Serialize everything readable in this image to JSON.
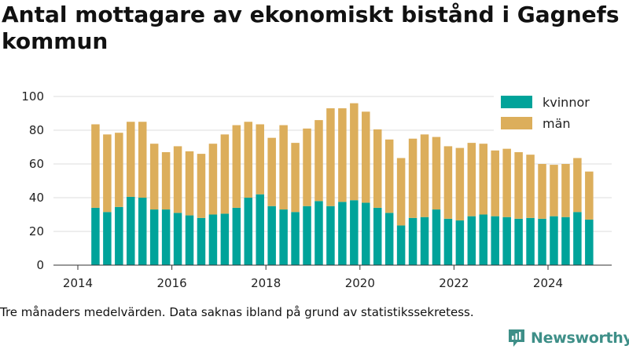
{
  "chart_data": {
    "type": "bar",
    "stacked": true,
    "title": "Antal mottagare av ekonomiskt bistånd i Gagnefs kommun",
    "xlabel": "",
    "ylabel": "",
    "ylim": [
      0,
      100
    ],
    "yticks": [
      0,
      20,
      40,
      60,
      80,
      100
    ],
    "xticks": [
      "2014",
      "2016",
      "2018",
      "2020",
      "2022",
      "2024"
    ],
    "x_start_year": 2014,
    "x_end_year": 2025.4,
    "legend_position": "top-right",
    "grid": "horizontal",
    "x": [
      "2014-05",
      "2014-08",
      "2014-11",
      "2015-02",
      "2015-05",
      "2015-08",
      "2015-11",
      "2016-02",
      "2016-05",
      "2016-08",
      "2016-11",
      "2017-02",
      "2017-05",
      "2017-08",
      "2017-11",
      "2018-02",
      "2018-05",
      "2018-08",
      "2018-11",
      "2019-02",
      "2019-05",
      "2019-08",
      "2019-11",
      "2020-02",
      "2020-05",
      "2020-08",
      "2020-11",
      "2021-02",
      "2021-05",
      "2021-08",
      "2021-11",
      "2022-02",
      "2022-05",
      "2022-08",
      "2022-11",
      "2023-02",
      "2023-05",
      "2023-08",
      "2023-11",
      "2024-02",
      "2024-05",
      "2024-08",
      "2024-11"
    ],
    "series": [
      {
        "name": "kvinnor",
        "color": "#00a39a",
        "values": [
          34,
          31.5,
          34.5,
          40.5,
          40,
          33,
          33,
          31,
          29.5,
          28,
          30,
          30.5,
          34,
          40,
          42,
          35,
          33,
          31.5,
          35,
          38,
          35,
          37.5,
          38.5,
          37,
          34,
          31,
          23.5,
          28,
          28.5,
          33,
          27.5,
          26.5,
          29,
          30,
          29,
          28.5,
          27.5,
          28,
          27.5,
          29,
          28.5,
          31.5,
          27
        ]
      },
      {
        "name": "män",
        "color": "#dcae5b",
        "values": [
          49.5,
          46,
          44,
          44.5,
          45,
          39,
          34,
          39.5,
          38,
          38,
          42,
          47,
          49,
          45,
          41.5,
          40.5,
          50,
          41,
          46,
          48,
          58,
          55.5,
          57.5,
          54,
          46.5,
          43.5,
          40,
          47,
          49,
          43,
          43,
          43,
          43.5,
          42,
          39,
          40.5,
          39.5,
          37.5,
          32.5,
          30.5,
          31.5,
          32,
          28.5
        ]
      }
    ]
  },
  "caption": "Tre månaders medelvärden. Data saknas ibland på grund av statistikssekretess.",
  "brand": {
    "name": "Newsworthy",
    "color": "#3e8f88"
  }
}
